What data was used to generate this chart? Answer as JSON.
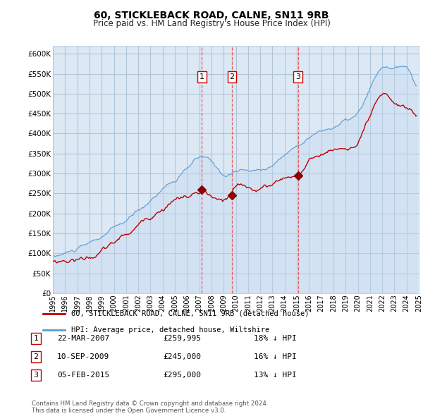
{
  "title": "60, STICKLEBACK ROAD, CALNE, SN11 9RB",
  "subtitle": "Price paid vs. HM Land Registry's House Price Index (HPI)",
  "ylim": [
    0,
    620000
  ],
  "yticks": [
    0,
    50000,
    100000,
    150000,
    200000,
    250000,
    300000,
    350000,
    400000,
    450000,
    500000,
    550000,
    600000
  ],
  "background_color": "#ffffff",
  "plot_bg_color": "#dce9f5",
  "grid_color": "#b0c4d8",
  "hpi_color": "#5b9bd5",
  "hpi_fill_color": "#c5d9f0",
  "price_color": "#c00000",
  "vline_color": "#e06060",
  "marker_color": "#8b0000",
  "legend_house": "60, STICKLEBACK ROAD, CALNE, SN11 9RB (detached house)",
  "legend_hpi": "HPI: Average price, detached house, Wiltshire",
  "transactions": [
    {
      "num": 1,
      "date": "22-MAR-2007",
      "price": "£259,995",
      "pct": "18% ↓ HPI",
      "year": 2007.22
    },
    {
      "num": 2,
      "date": "10-SEP-2009",
      "price": "£245,000",
      "pct": "16% ↓ HPI",
      "year": 2009.69
    },
    {
      "num": 3,
      "date": "05-FEB-2015",
      "price": "£295,000",
      "pct": "13% ↓ HPI",
      "year": 2015.09
    }
  ],
  "footer": "Contains HM Land Registry data © Crown copyright and database right 2024.\nThis data is licensed under the Open Government Licence v3.0.",
  "xmin": 1995,
  "xmax": 2025,
  "xtick_years": [
    1995,
    1996,
    1997,
    1998,
    1999,
    2000,
    2001,
    2002,
    2003,
    2004,
    2005,
    2006,
    2007,
    2008,
    2009,
    2010,
    2011,
    2012,
    2013,
    2014,
    2015,
    2016,
    2017,
    2018,
    2019,
    2020,
    2021,
    2022,
    2023,
    2024,
    2025
  ]
}
